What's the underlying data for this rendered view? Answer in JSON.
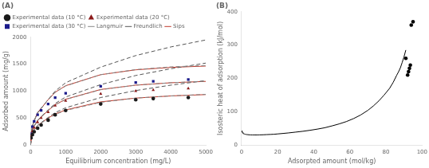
{
  "chart_data": [
    {
      "type": "scatter",
      "title": "(A)",
      "x_label": "Equilibrium concentration (mg/L)",
      "y_label": "Adsorbed amount (mg/g)",
      "xlim": [
        0,
        5000
      ],
      "ylim": [
        0,
        2000
      ],
      "xticks": [
        0,
        1000,
        2000,
        3000,
        4000,
        5000
      ],
      "yticks": [
        0,
        500,
        1000,
        1500,
        2000
      ],
      "grid": false,
      "legend": "upper left",
      "series": [
        {
          "name": "Experimental data (10 °C)",
          "type": "scatter",
          "marker": "circle",
          "color": "#1a1a1a",
          "x": [
            10,
            50,
            100,
            200,
            300,
            500,
            700,
            1000,
            2000,
            3000,
            3500,
            4500
          ],
          "values": [
            130,
            190,
            245,
            310,
            370,
            460,
            560,
            640,
            760,
            840,
            860,
            880
          ]
        },
        {
          "name": "Experimental data (20 °C)",
          "type": "scatter",
          "marker": "triangle",
          "color": "#8b1a1a",
          "x": [
            10,
            50,
            100,
            200,
            300,
            500,
            700,
            1000,
            2000,
            3000,
            3500,
            4500
          ],
          "values": [
            160,
            255,
            320,
            420,
            500,
            610,
            730,
            820,
            950,
            1000,
            1020,
            1050
          ]
        },
        {
          "name": "Experimental data (30 °C)",
          "type": "scatter",
          "marker": "square",
          "color": "#1a1a8b",
          "x": [
            10,
            50,
            100,
            200,
            300,
            500,
            700,
            1000,
            2000,
            3000,
            3500,
            4500
          ],
          "values": [
            210,
            340,
            440,
            560,
            640,
            760,
            880,
            960,
            1090,
            1160,
            1180,
            1215
          ]
        },
        {
          "name": "Langmuir",
          "type": "line",
          "line_style": "dashed",
          "color": "#888888",
          "x": [
            0,
            20,
            50,
            100,
            200,
            500,
            700,
            1000,
            2000,
            3000,
            4000,
            5000
          ],
          "values": [
            0,
            160,
            220,
            280,
            360,
            490,
            565,
            640,
            790,
            870,
            910,
            940
          ]
        },
        {
          "name": "Langmuir",
          "type": "line",
          "line_style": "dashed",
          "color": "#888888",
          "x": [
            0,
            20,
            50,
            100,
            200,
            500,
            700,
            1000,
            2000,
            3000,
            4000,
            5000
          ],
          "values": [
            0,
            195,
            275,
            355,
            460,
            640,
            745,
            845,
            1025,
            1110,
            1155,
            1185
          ]
        },
        {
          "name": "Langmuir",
          "type": "line",
          "line_style": "dashed",
          "color": "#888888",
          "x": [
            0,
            20,
            50,
            100,
            200,
            500,
            700,
            1000,
            2000,
            3000,
            4000,
            5000
          ],
          "values": [
            0,
            245,
            350,
            455,
            600,
            840,
            975,
            1095,
            1305,
            1400,
            1450,
            1475
          ]
        },
        {
          "name": "Freundlich",
          "type": "line",
          "line_style": "dashed",
          "color": "#555555",
          "x": [
            0,
            20,
            50,
            100,
            200,
            500,
            700,
            1000,
            2000,
            3000,
            4000,
            5000
          ],
          "values": [
            0,
            145,
            210,
            275,
            365,
            510,
            600,
            690,
            880,
            1010,
            1110,
            1195
          ]
        },
        {
          "name": "Freundlich",
          "type": "line",
          "line_style": "dashed",
          "color": "#555555",
          "x": [
            0,
            20,
            50,
            100,
            200,
            500,
            700,
            1000,
            2000,
            3000,
            4000,
            5000
          ],
          "values": [
            0,
            180,
            265,
            345,
            460,
            650,
            770,
            890,
            1120,
            1290,
            1415,
            1520
          ]
        },
        {
          "name": "Freundlich",
          "type": "line",
          "line_style": "dashed",
          "color": "#555555",
          "x": [
            0,
            20,
            50,
            100,
            200,
            500,
            700,
            1000,
            2000,
            3000,
            4000,
            5000
          ],
          "values": [
            0,
            230,
            340,
            445,
            595,
            845,
            1000,
            1155,
            1445,
            1660,
            1820,
            1950
          ]
        },
        {
          "name": "Sips",
          "type": "line",
          "line_style": "solid",
          "color": "#c0392b",
          "x": [
            0,
            20,
            50,
            100,
            200,
            500,
            700,
            1000,
            2000,
            3000,
            4000,
            5000
          ],
          "values": [
            0,
            155,
            220,
            280,
            360,
            500,
            575,
            650,
            800,
            870,
            910,
            935
          ]
        },
        {
          "name": "Sips",
          "type": "line",
          "line_style": "solid",
          "color": "#c0392b",
          "x": [
            0,
            20,
            50,
            100,
            200,
            500,
            700,
            1000,
            2000,
            3000,
            4000,
            5000
          ],
          "values": [
            0,
            190,
            270,
            350,
            455,
            640,
            745,
            848,
            1030,
            1110,
            1155,
            1180
          ]
        },
        {
          "name": "Sips",
          "type": "line",
          "line_style": "solid",
          "color": "#c0392b",
          "x": [
            0,
            20,
            50,
            100,
            200,
            500,
            700,
            1000,
            2000,
            3000,
            4000,
            5000
          ],
          "values": [
            0,
            240,
            345,
            450,
            600,
            840,
            978,
            1100,
            1305,
            1395,
            1440,
            1465
          ]
        }
      ]
    },
    {
      "type": "scatter",
      "title": "(B)",
      "x_label": "Adsorpted amount (mol/kg)",
      "y_label": "Isosteric heat of adsorption (kJ/mol)",
      "xlim": [
        0,
        100
      ],
      "ylim": [
        0,
        400
      ],
      "xticks": [
        0,
        20,
        40,
        60,
        80,
        100
      ],
      "yticks": [
        0,
        100,
        200,
        300,
        400
      ],
      "grid": false,
      "series": [
        {
          "type": "line",
          "line_style": "solid",
          "color": "#000000",
          "x": [
            0.1,
            0.3,
            0.5,
            0.8,
            1,
            1.5,
            2,
            2.5,
            3,
            3.5,
            4,
            4.5,
            5,
            6,
            7,
            8,
            9,
            10,
            12,
            14,
            16,
            18,
            20,
            23,
            26,
            30,
            34,
            38,
            42,
            46,
            50,
            54,
            58,
            62,
            66,
            70,
            73,
            76,
            79,
            82,
            84,
            86,
            87,
            88,
            89,
            90,
            91
          ],
          "values": [
            42,
            39,
            37,
            35,
            34,
            33,
            32,
            31.5,
            31,
            30.8,
            30.5,
            30.3,
            30.1,
            30,
            30,
            30,
            30,
            30.2,
            30.5,
            31,
            31.5,
            32,
            33,
            34.5,
            36,
            38.5,
            41,
            44,
            47.5,
            51.5,
            57,
            63,
            70,
            79,
            90,
            104,
            117,
            132,
            150,
            170,
            188,
            210,
            220,
            232,
            248,
            265,
            285
          ]
        },
        {
          "type": "scatter",
          "marker": "circle",
          "color": "#000000",
          "x": [
            91,
            92,
            92.5,
            93,
            93.5,
            94,
            95
          ],
          "values": [
            260,
            210,
            220,
            230,
            240,
            360,
            370
          ]
        }
      ]
    }
  ]
}
